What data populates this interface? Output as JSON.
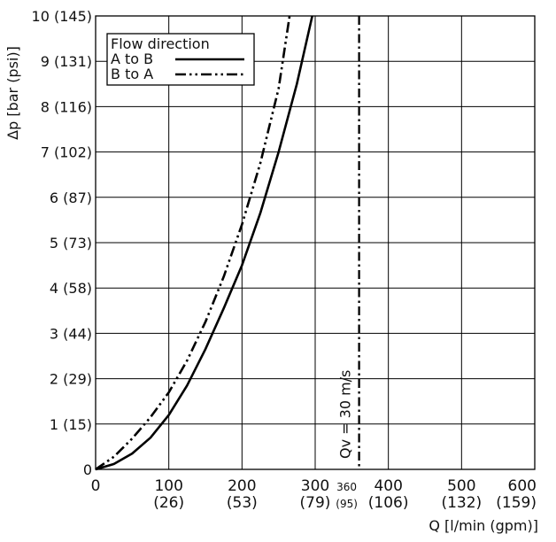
{
  "chart_data": {
    "type": "line",
    "ylabel": "Δp [bar (psi)]",
    "xlabel": "Q [l/min (gpm)]",
    "xlim": [
      0,
      600
    ],
    "ylim": [
      0,
      10
    ],
    "grid": true,
    "legend_placement": "top-left",
    "legend_title": "Flow direction",
    "x_ticks": [
      {
        "value": 0,
        "label": "0",
        "sub": ""
      },
      {
        "value": 100,
        "label": "100",
        "sub": "(26)"
      },
      {
        "value": 200,
        "label": "200",
        "sub": "(53)"
      },
      {
        "value": 300,
        "label": "300",
        "sub": "(79)"
      },
      {
        "value": 400,
        "label": "400",
        "sub": "(106)"
      },
      {
        "value": 500,
        "label": "500",
        "sub": "(132)"
      },
      {
        "value": 600,
        "label": "600",
        "sub": "(159)"
      }
    ],
    "y_ticks": [
      {
        "value": 0,
        "label": "0"
      },
      {
        "value": 1,
        "label": "1 (15)"
      },
      {
        "value": 2,
        "label": "2 (29)"
      },
      {
        "value": 3,
        "label": "3 (44)"
      },
      {
        "value": 4,
        "label": "4 (58)"
      },
      {
        "value": 5,
        "label": "5 (73)"
      },
      {
        "value": 6,
        "label": "6 (87)"
      },
      {
        "value": 7,
        "label": "7 (102)"
      },
      {
        "value": 8,
        "label": "8 (116)"
      },
      {
        "value": 9,
        "label": "9 (131)"
      },
      {
        "value": 10,
        "label": "10 (145)"
      }
    ],
    "series": [
      {
        "name": "A to B",
        "style": "solid",
        "x": [
          0,
          25,
          50,
          75,
          100,
          125,
          150,
          175,
          200,
          225,
          250,
          275,
          296
        ],
        "y": [
          0,
          0.12,
          0.35,
          0.7,
          1.2,
          1.85,
          2.65,
          3.55,
          4.5,
          5.65,
          7.0,
          8.5,
          10.0
        ]
      },
      {
        "name": "B to A",
        "style": "dash-dot-dot",
        "x": [
          0,
          25,
          50,
          75,
          100,
          125,
          150,
          175,
          200,
          225,
          250,
          265
        ],
        "y": [
          0,
          0.28,
          0.68,
          1.15,
          1.7,
          2.4,
          3.25,
          4.25,
          5.4,
          6.75,
          8.4,
          10.0
        ]
      }
    ],
    "annotations": [
      {
        "type": "vline",
        "x": 360,
        "style": "dash-dot",
        "label": "Qv = 30 m/s",
        "tick_label": "360",
        "tick_sub": "(95)"
      }
    ]
  },
  "colors": {
    "line": "#000000",
    "grid": "#000000",
    "text": "#111111",
    "background": "#ffffff"
  }
}
